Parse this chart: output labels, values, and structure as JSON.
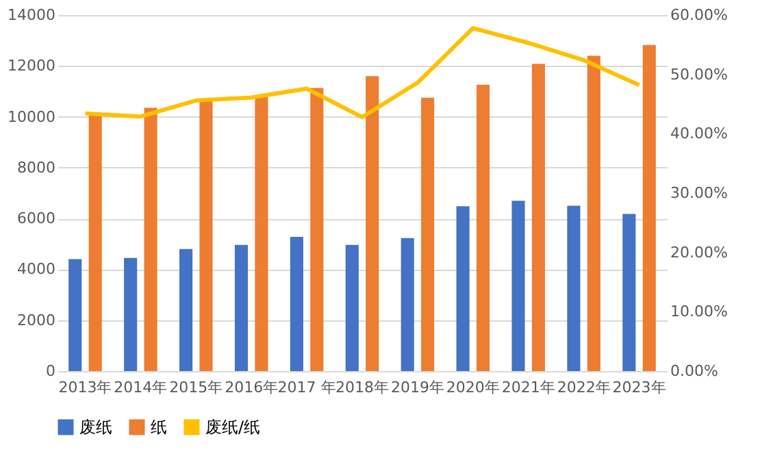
{
  "chart_data": {
    "type": "bar",
    "categories": [
      "2013年",
      "2014年",
      "2015年",
      "2016年",
      "2017 年",
      "2018年",
      "2019年",
      "2020年",
      "2021年",
      "2022年",
      "2023年"
    ],
    "series": [
      {
        "name": "废纸",
        "color": "#4472c4",
        "values": [
          4400,
          4450,
          4800,
          4960,
          5280,
          4960,
          5230,
          6480,
          6700,
          6500,
          6180
        ]
      },
      {
        "name": "纸",
        "color": "#ed7d31",
        "values": [
          10150,
          10350,
          10700,
          10850,
          11130,
          11600,
          10750,
          11260,
          12080,
          12400,
          12820
        ]
      },
      {
        "name": "废纸/纸",
        "type": "line",
        "axis": "y2",
        "color": "#ffc000",
        "values": [
          43.4,
          42.9,
          45.6,
          46.1,
          47.6,
          42.8,
          48.6,
          57.8,
          55.3,
          52.4,
          48.2
        ]
      }
    ],
    "ylim": [
      0,
      14000
    ],
    "yticks": [
      0,
      2000,
      4000,
      6000,
      8000,
      10000,
      12000,
      14000
    ],
    "y2lim": [
      0,
      60
    ],
    "y2ticks": [
      {
        "value": 0,
        "label": "0.00%"
      },
      {
        "value": 10,
        "label": "10.00%"
      },
      {
        "value": 20,
        "label": "20.00%"
      },
      {
        "value": 30,
        "label": "30.00%"
      },
      {
        "value": 40,
        "label": "40.00%"
      },
      {
        "value": 50,
        "label": "50.00%"
      },
      {
        "value": 60,
        "label": "60.00%"
      }
    ],
    "grid": "y",
    "legend": "bottom",
    "marker": "none",
    "line_style": "solid"
  }
}
